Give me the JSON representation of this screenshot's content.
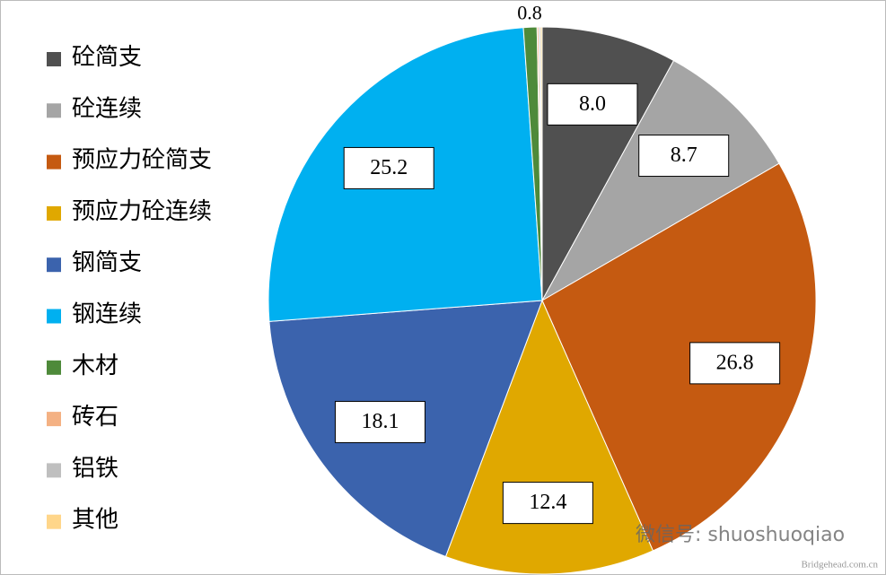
{
  "chart_data": {
    "type": "pie",
    "categories": [
      "砼简支",
      "砼连续",
      "预应力砼简支",
      "预应力砼连续",
      "钢简支",
      "钢连续",
      "木材",
      "砖石",
      "铝铁",
      "其他"
    ],
    "values": [
      8.0,
      8.7,
      26.8,
      12.4,
      18.1,
      25.2,
      0.8,
      0.1,
      0.1,
      0.1
    ],
    "value_labels": [
      "8.0",
      "8.7",
      "26.8",
      "12.4",
      "18.1",
      "25.2",
      "0.8",
      null,
      null,
      null
    ],
    "colors": [
      "#505050",
      "#a5a5a5",
      "#c55a11",
      "#e0a800",
      "#3b63ad",
      "#00b0f0",
      "#4e8a3a",
      "#f4b183",
      "#bfbfbf",
      "#ffd68a"
    ],
    "legend": "left",
    "watermark": "微信号: shuoshuoqiao",
    "site": "Bridgehead.com.cn"
  }
}
